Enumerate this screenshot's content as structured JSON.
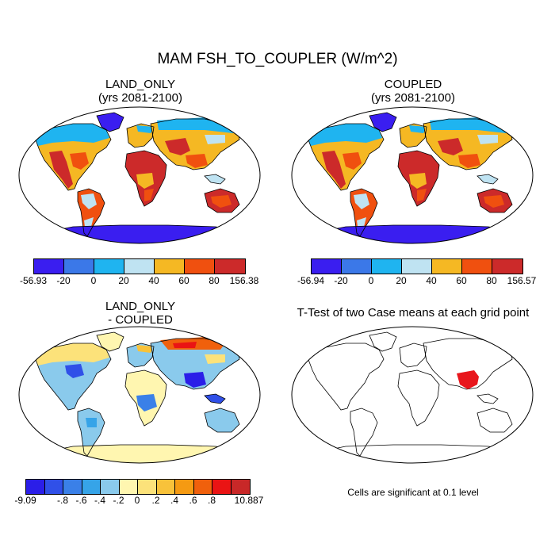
{
  "main_title": "MAM FSH_TO_COUPLER (W/m^2)",
  "panels": [
    {
      "id": "land_only",
      "title_line1": "LAND_ONLY",
      "title_line2": "(yrs 2081-2100)",
      "colorbar": {
        "colors": [
          "#3a1ef0",
          "#3b78e8",
          "#1fb4f0",
          "#bfe3f2",
          "#f5b823",
          "#f0500f",
          "#cc2a2a"
        ],
        "labels": [
          "-56.93",
          "-20",
          "0",
          "20",
          "40",
          "60",
          "80",
          "156.38"
        ]
      }
    },
    {
      "id": "coupled",
      "title_line1": "COUPLED",
      "title_line2": "(yrs 2081-2100)",
      "colorbar": {
        "colors": [
          "#3a1ef0",
          "#3b78e8",
          "#1fb4f0",
          "#bfe3f2",
          "#f5b823",
          "#f0500f",
          "#cc2a2a"
        ],
        "labels": [
          "-56.94",
          "-20",
          "0",
          "20",
          "40",
          "60",
          "80",
          "156.57"
        ]
      }
    },
    {
      "id": "difference",
      "title_line1": "LAND_ONLY",
      "title_line2": "- COUPLED",
      "colorbar": {
        "colors": [
          "#2b1ee8",
          "#3050e8",
          "#3a80e8",
          "#36a4e8",
          "#8acaec",
          "#fff6b0",
          "#fce27a",
          "#f8c23a",
          "#f59a12",
          "#f0600c",
          "#ea1414",
          "#c82828"
        ],
        "labels": [
          "-9.09",
          "-.8",
          "-.6",
          "-.4",
          "-.2",
          "0",
          ".2",
          ".4",
          ".6",
          ".8",
          "10.887"
        ]
      }
    },
    {
      "id": "ttest",
      "title_line1": "T-Test of two Case means at each grid point",
      "note": "Cells are significant at 0.1 level",
      "highlight_color": "#e8161c"
    }
  ]
}
